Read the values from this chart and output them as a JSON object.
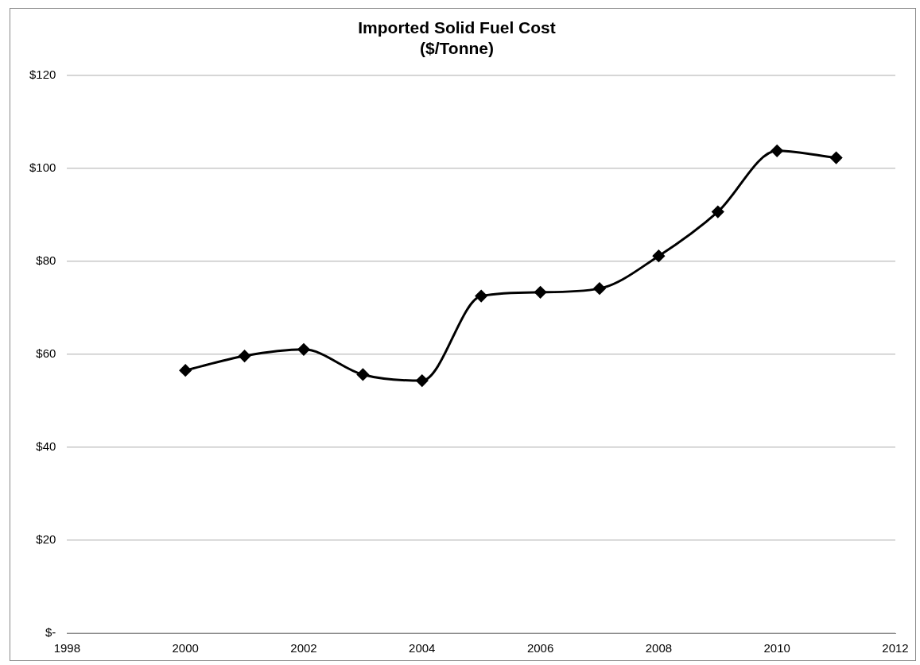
{
  "chart_data": {
    "type": "line",
    "title": "Imported Solid Fuel Cost\n($/Tonne)",
    "x": [
      2000,
      2001,
      2002,
      2003,
      2004,
      2005,
      2006,
      2007,
      2008,
      2009,
      2010,
      2011
    ],
    "series": [
      {
        "color": "#000000",
        "values": [
          56.5,
          59.6,
          61.0,
          55.6,
          54.3,
          72.5,
          73.3,
          74.1,
          81.1,
          90.6,
          103.7,
          102.2
        ]
      }
    ],
    "xlim": [
      1998,
      2012
    ],
    "xticks": [
      1998,
      2000,
      2002,
      2004,
      2006,
      2008,
      2010,
      2012
    ],
    "ylim": [
      0,
      120
    ],
    "yticks": [
      {
        "value": 0,
        "label": "$-"
      },
      {
        "value": 20,
        "label": "$20"
      },
      {
        "value": 40,
        "label": "$40"
      },
      {
        "value": 60,
        "label": "$60"
      },
      {
        "value": 80,
        "label": "$80"
      },
      {
        "value": 100,
        "label": "$100"
      },
      {
        "value": 120,
        "label": "$120"
      }
    ],
    "grid": "y",
    "legend": false,
    "marker": "diamond",
    "line_style": "solid"
  }
}
